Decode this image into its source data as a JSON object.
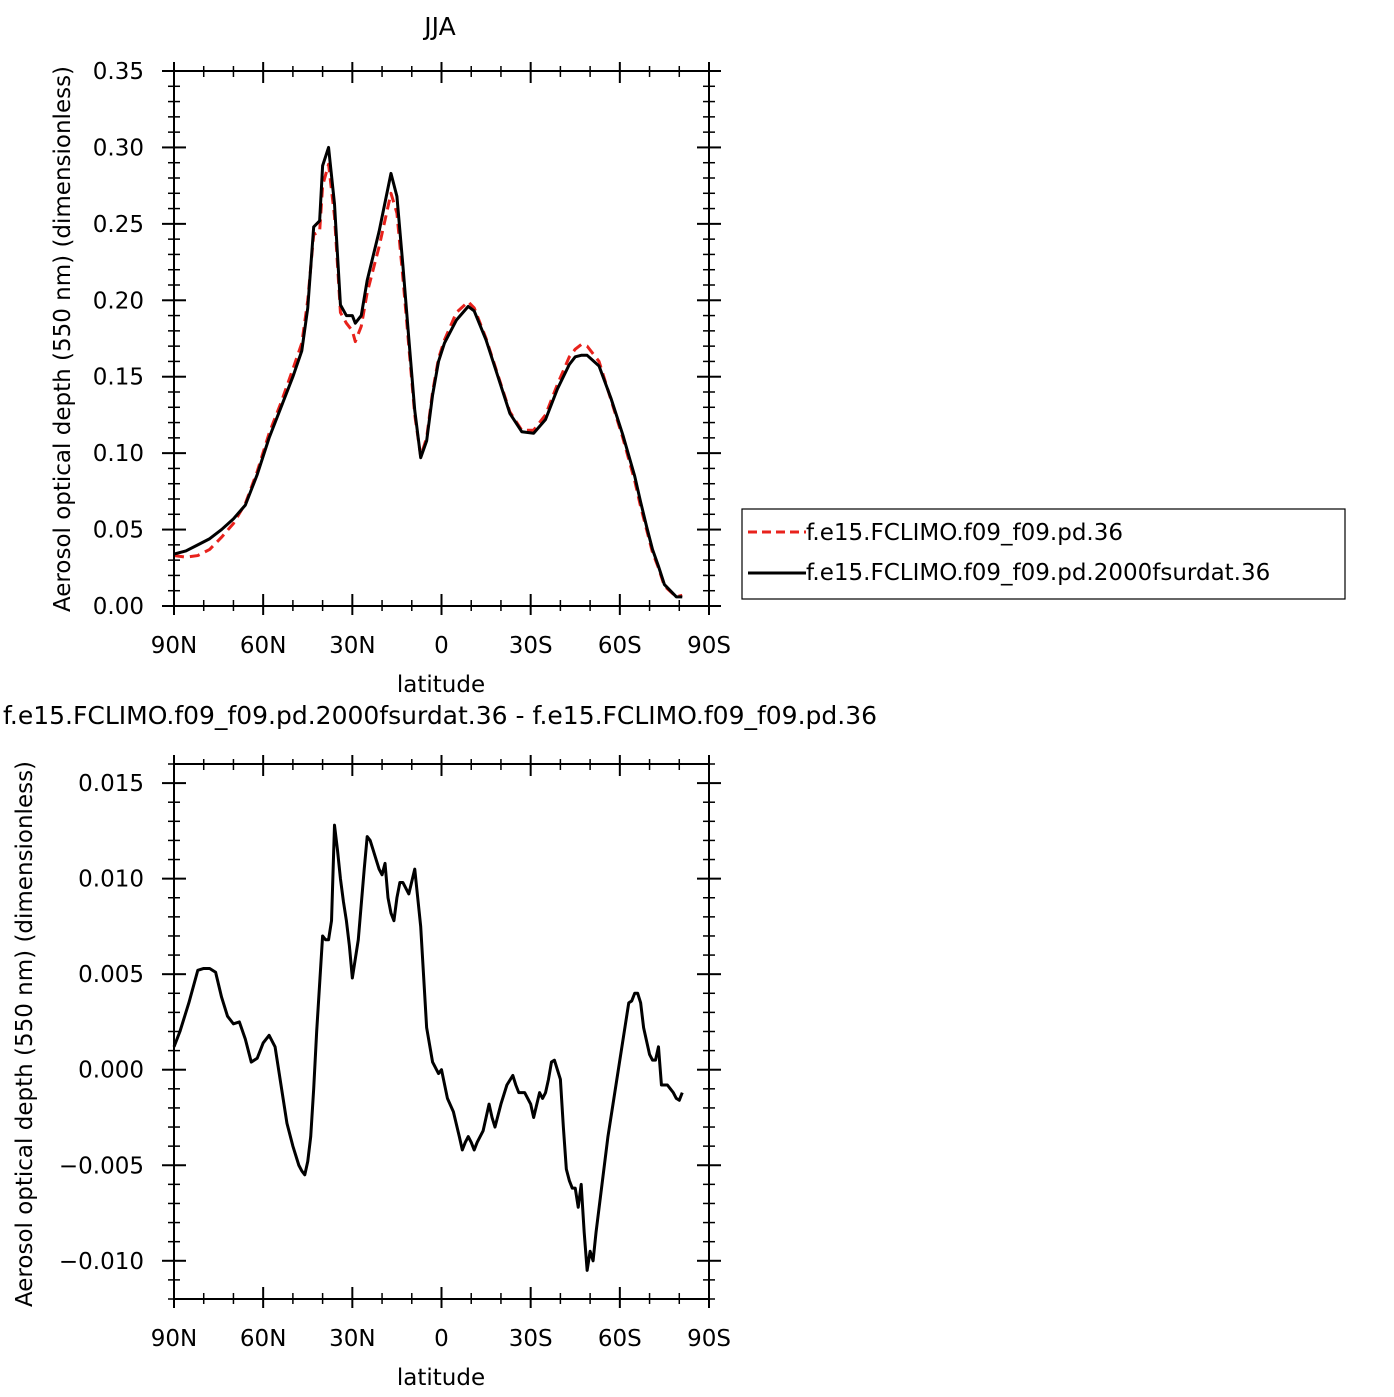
{
  "chart_data": [
    {
      "type": "line",
      "title": "JJA",
      "xlabel": "latitude",
      "ylabel": "Aerosol optical depth (550 nm) (dimensionless)",
      "xlim": [
        90,
        -90
      ],
      "ylim": [
        0,
        0.35
      ],
      "xticks": [
        90,
        60,
        30,
        0,
        -30,
        -60,
        -90
      ],
      "xtick_labels": [
        "90N",
        "60N",
        "30N",
        "0",
        "30S",
        "60S",
        "90S"
      ],
      "yticks": [
        0,
        0.05,
        0.1,
        0.15,
        0.2,
        0.25,
        0.3,
        0.35
      ],
      "ytick_labels": [
        "0.00",
        "0.05",
        "0.10",
        "0.15",
        "0.20",
        "0.25",
        "0.30",
        "0.35"
      ],
      "legend_position": "right",
      "series": [
        {
          "name": "f.e15.FCLIMO.f09_f09.pd.36",
          "color": "#e8221c",
          "style": "dashed",
          "x": [
            90,
            86,
            82,
            78,
            74,
            70,
            66,
            62,
            58,
            54,
            50,
            47,
            45,
            43,
            41,
            40,
            38,
            36,
            34,
            32,
            30,
            29,
            27,
            25,
            21,
            17,
            15,
            13,
            11,
            9,
            7,
            5,
            3,
            1,
            -1,
            -5,
            -9,
            -11,
            -15,
            -19,
            -23,
            -27,
            -31,
            -35,
            -39,
            -43,
            -45,
            -47,
            -49,
            -53,
            -57,
            -61,
            -65,
            -67,
            -69,
            -71,
            -73,
            -75,
            -79,
            -81
          ],
          "y": [
            0.033,
            0.032,
            0.033,
            0.037,
            0.045,
            0.054,
            0.067,
            0.088,
            0.113,
            0.133,
            0.155,
            0.172,
            0.2,
            0.243,
            0.245,
            0.275,
            0.289,
            0.255,
            0.192,
            0.185,
            0.18,
            0.173,
            0.183,
            0.205,
            0.235,
            0.27,
            0.257,
            0.215,
            0.17,
            0.125,
            0.098,
            0.11,
            0.14,
            0.162,
            0.174,
            0.192,
            0.199,
            0.195,
            0.175,
            0.151,
            0.127,
            0.115,
            0.115,
            0.125,
            0.145,
            0.163,
            0.168,
            0.171,
            0.17,
            0.16,
            0.135,
            0.11,
            0.082,
            0.065,
            0.05,
            0.035,
            0.025,
            0.013,
            0.006,
            0.007
          ]
        },
        {
          "name": "f.e15.FCLIMO.f09_f09.pd.2000fsurdat.36",
          "color": "#000000",
          "style": "solid",
          "x": [
            90,
            86,
            82,
            78,
            74,
            70,
            66,
            62,
            58,
            54,
            50,
            47,
            45,
            43,
            41,
            40,
            38,
            36,
            34,
            32,
            30,
            29,
            27,
            25,
            21,
            17,
            15,
            13,
            11,
            9,
            7,
            5,
            3,
            1,
            -1,
            -5,
            -9,
            -11,
            -15,
            -19,
            -23,
            -27,
            -31,
            -35,
            -39,
            -43,
            -45,
            -47,
            -49,
            -53,
            -57,
            -61,
            -65,
            -67,
            -69,
            -71,
            -73,
            -75,
            -79,
            -81
          ],
          "y": [
            0.034,
            0.036,
            0.04,
            0.044,
            0.05,
            0.057,
            0.066,
            0.086,
            0.11,
            0.13,
            0.15,
            0.167,
            0.195,
            0.248,
            0.252,
            0.288,
            0.3,
            0.263,
            0.197,
            0.19,
            0.19,
            0.185,
            0.19,
            0.213,
            0.245,
            0.283,
            0.268,
            0.223,
            0.175,
            0.128,
            0.097,
            0.108,
            0.138,
            0.16,
            0.172,
            0.187,
            0.196,
            0.193,
            0.174,
            0.15,
            0.126,
            0.114,
            0.113,
            0.122,
            0.142,
            0.158,
            0.163,
            0.164,
            0.164,
            0.157,
            0.136,
            0.112,
            0.085,
            0.068,
            0.052,
            0.037,
            0.026,
            0.014,
            0.006,
            0.006
          ]
        }
      ]
    },
    {
      "type": "line",
      "title": "f.e15.FCLIMO.f09_f09.pd.2000fsurdat.36 - f.e15.FCLIMO.f09_f09.pd.36",
      "xlabel": "latitude",
      "ylabel": "Aerosol optical depth (550 nm) (dimensionless)",
      "xlim": [
        90,
        -90
      ],
      "ylim": [
        -0.012,
        0.016
      ],
      "xticks": [
        90,
        60,
        30,
        0,
        -30,
        -60,
        -90
      ],
      "xtick_labels": [
        "90N",
        "60N",
        "30N",
        "0",
        "30S",
        "60S",
        "90S"
      ],
      "yticks": [
        -0.01,
        -0.005,
        0.0,
        0.005,
        0.01,
        0.015
      ],
      "ytick_labels": [
        "−0.010",
        "−0.005",
        "0.000",
        "0.005",
        "0.010",
        "0.015"
      ],
      "series": [
        {
          "color": "#000000",
          "style": "solid",
          "x": [
            90,
            88,
            85,
            82,
            80,
            78,
            76,
            74,
            72,
            70,
            68,
            66,
            64,
            62,
            60,
            58,
            56,
            54,
            52,
            50,
            48,
            47,
            46,
            45,
            44,
            43,
            42,
            41,
            40,
            39,
            38,
            37,
            36,
            35,
            34,
            33,
            32,
            31,
            30,
            28,
            26,
            25,
            24,
            23,
            22,
            21,
            20,
            19,
            18,
            17,
            16,
            15,
            14,
            13,
            11,
            9,
            8,
            7,
            5,
            3,
            1,
            0,
            -2,
            -4,
            -6,
            -7,
            -8,
            -9,
            -10,
            -11,
            -12,
            -14,
            -16,
            -17,
            -18,
            -20,
            -22,
            -24,
            -25,
            -26,
            -28,
            -30,
            -31,
            -33,
            -34,
            -35,
            -36,
            -37,
            -38,
            -40,
            -41,
            -42,
            -43,
            -44,
            -45,
            -46,
            -47,
            -48,
            -49,
            -50,
            -51,
            -52,
            -54,
            -56,
            -58,
            -60,
            -62,
            -63,
            -64,
            -65,
            -66,
            -67,
            -68,
            -69,
            -70,
            -71,
            -72,
            -73,
            -74,
            -76,
            -77,
            -78,
            -79,
            -80,
            -81
          ],
          "y": [
            0.0012,
            0.002,
            0.0035,
            0.0052,
            0.0053,
            0.0053,
            0.0051,
            0.0038,
            0.0028,
            0.0024,
            0.0025,
            0.0016,
            0.0004,
            0.0006,
            0.0014,
            0.0018,
            0.0012,
            -0.0008,
            -0.0028,
            -0.004,
            -0.005,
            -0.0053,
            -0.0055,
            -0.0048,
            -0.0035,
            -0.001,
            0.002,
            0.0045,
            0.007,
            0.0068,
            0.0068,
            0.0078,
            0.0128,
            0.0115,
            0.01,
            0.0088,
            0.0078,
            0.0065,
            0.0048,
            0.0068,
            0.0105,
            0.0122,
            0.012,
            0.0115,
            0.011,
            0.0105,
            0.0102,
            0.0108,
            0.009,
            0.0082,
            0.0078,
            0.009,
            0.0098,
            0.0098,
            0.0092,
            0.0105,
            0.009,
            0.0075,
            0.0022,
            0.0004,
            -0.0002,
            0.0,
            -0.0015,
            -0.0022,
            -0.0035,
            -0.0042,
            -0.0038,
            -0.0035,
            -0.0038,
            -0.0042,
            -0.0038,
            -0.0032,
            -0.0018,
            -0.0025,
            -0.003,
            -0.0018,
            -0.0008,
            -0.0003,
            -0.0008,
            -0.0012,
            -0.0012,
            -0.0018,
            -0.0025,
            -0.0012,
            -0.0015,
            -0.0012,
            -0.0005,
            0.0004,
            0.0005,
            -0.0005,
            -0.003,
            -0.0052,
            -0.0058,
            -0.0062,
            -0.0062,
            -0.0072,
            -0.006,
            -0.0085,
            -0.0105,
            -0.0095,
            -0.01,
            -0.0085,
            -0.006,
            -0.0035,
            -0.0015,
            0.0005,
            0.0025,
            0.0035,
            0.0036,
            0.004,
            0.004,
            0.0035,
            0.0022,
            0.0015,
            0.0008,
            0.0005,
            0.0005,
            0.0012,
            -0.0008,
            -0.0008,
            -0.001,
            -0.0012,
            -0.0015,
            -0.0016,
            -0.0012
          ]
        }
      ]
    }
  ]
}
